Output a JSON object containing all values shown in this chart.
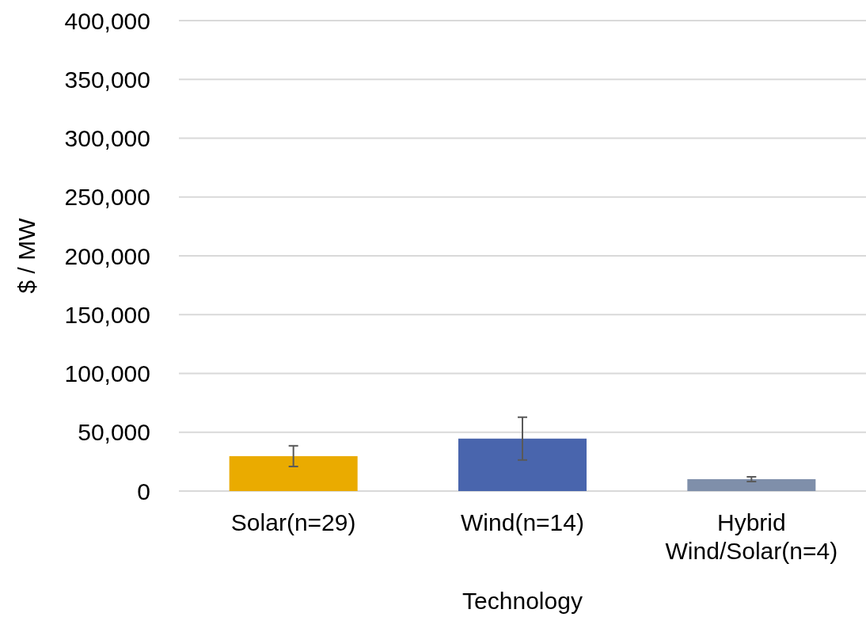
{
  "chart_data": {
    "type": "bar",
    "xlabel": "Technology",
    "ylabel": "$ / MW",
    "categories": [
      "Solar(n=29)",
      "Wind(n=14)",
      "Hybrid Wind/Solar(n=4)"
    ],
    "values": [
      29700,
      44600,
      10100
    ],
    "colors": [
      "#eaab00",
      "#4965ad",
      "#7f8faa"
    ],
    "errors": [
      8800,
      18200,
      2000
    ],
    "ylim": [
      0,
      400000
    ],
    "yticks": [
      {
        "value": 0,
        "label": "0"
      },
      {
        "value": 50000,
        "label": "50,000"
      },
      {
        "value": 100000,
        "label": "100,000"
      },
      {
        "value": 150000,
        "label": "150,000"
      },
      {
        "value": 200000,
        "label": "200,000"
      },
      {
        "value": 250000,
        "label": "250,000"
      },
      {
        "value": 300000,
        "label": "300,000"
      },
      {
        "value": 350000,
        "label": "350,000"
      },
      {
        "value": 400000,
        "label": "400,000"
      }
    ],
    "grid": "y"
  }
}
